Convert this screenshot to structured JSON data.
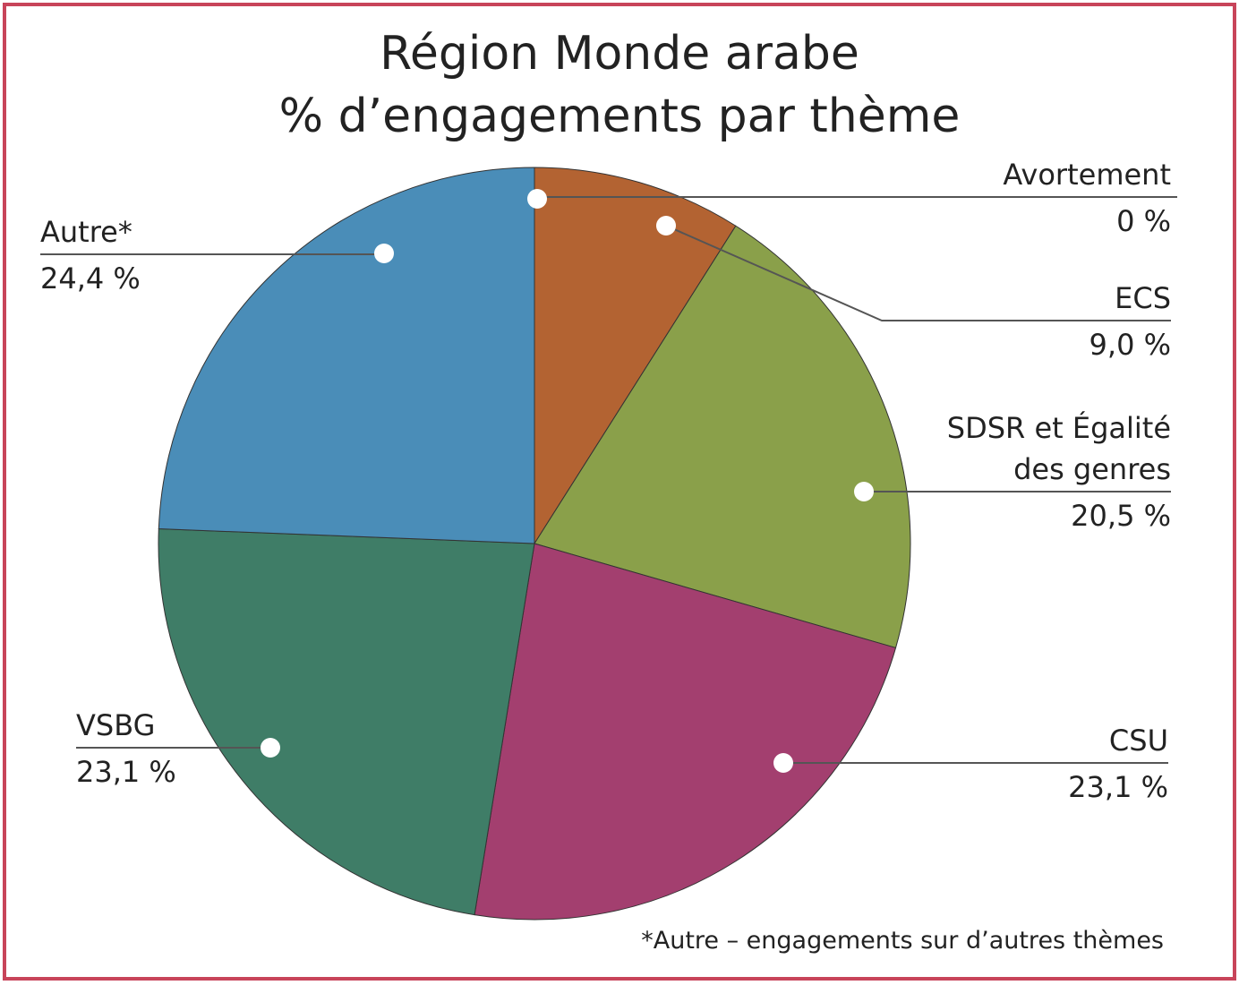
{
  "chart_data": {
    "type": "pie",
    "title": "Région Monde arabe",
    "subtitle": "% d’engagements par thème",
    "note": "*Autre – engagements sur d’autres thèmes",
    "categories": [
      "Avortement",
      "ECS",
      "SDSR et Égalité des genres",
      "CSU",
      "VSBG",
      "Autre*"
    ],
    "values": [
      0,
      9.0,
      20.5,
      23.1,
      23.1,
      24.4
    ],
    "value_labels": [
      "0 %",
      "9,0 %",
      "20,5 %",
      "23,1 %",
      "23,1 %",
      "24,4 %"
    ],
    "colors": [
      "#c0392b",
      "#b36332",
      "#8aa04a",
      "#a33f6f",
      "#3f7d67",
      "#4a8db8"
    ]
  }
}
